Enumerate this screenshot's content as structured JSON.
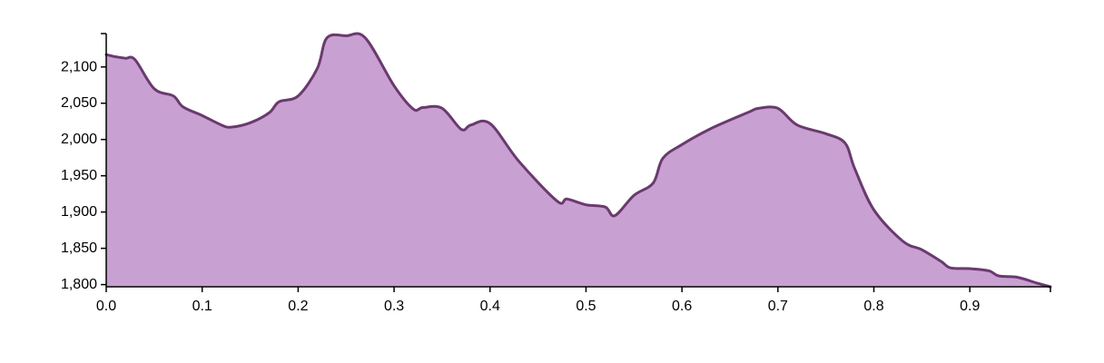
{
  "chart_data": {
    "type": "area",
    "title": "",
    "xlabel": "",
    "ylabel": "",
    "xlim": [
      0,
      0.984
    ],
    "ylim": [
      1797,
      2146
    ],
    "grid": false,
    "legend": "none",
    "colors": {
      "fill": "#c9a0d2",
      "line": "#6a3a6e",
      "axis": "#000000"
    },
    "x_ticks": [
      {
        "value": 0.0,
        "label": "0.0"
      },
      {
        "value": 0.1,
        "label": "0.1"
      },
      {
        "value": 0.2,
        "label": "0.2"
      },
      {
        "value": 0.3,
        "label": "0.3"
      },
      {
        "value": 0.4,
        "label": "0.4"
      },
      {
        "value": 0.5,
        "label": "0.5"
      },
      {
        "value": 0.6,
        "label": "0.6"
      },
      {
        "value": 0.7,
        "label": "0.7"
      },
      {
        "value": 0.8,
        "label": "0.8"
      },
      {
        "value": 0.9,
        "label": "0.9"
      }
    ],
    "y_ticks": [
      {
        "value": 1800,
        "label": "1,800"
      },
      {
        "value": 1850,
        "label": "1,850"
      },
      {
        "value": 1900,
        "label": "1,900"
      },
      {
        "value": 1950,
        "label": "1,950"
      },
      {
        "value": 2000,
        "label": "2,000"
      },
      {
        "value": 2050,
        "label": "2,050"
      },
      {
        "value": 2100,
        "label": "2,100"
      }
    ],
    "series": [
      {
        "x": [
          0.0,
          0.01,
          0.02,
          0.03,
          0.05,
          0.07,
          0.08,
          0.1,
          0.12,
          0.13,
          0.15,
          0.17,
          0.18,
          0.2,
          0.22,
          0.23,
          0.25,
          0.27,
          0.3,
          0.32,
          0.33,
          0.35,
          0.37,
          0.38,
          0.4,
          0.43,
          0.47,
          0.48,
          0.5,
          0.52,
          0.53,
          0.55,
          0.57,
          0.58,
          0.6,
          0.63,
          0.67,
          0.68,
          0.7,
          0.72,
          0.75,
          0.77,
          0.78,
          0.8,
          0.83,
          0.85,
          0.87,
          0.88,
          0.9,
          0.92,
          0.93,
          0.95,
          0.97,
          0.984
        ],
        "values": [
          2117,
          2114,
          2112,
          2110,
          2070,
          2060,
          2045,
          2033,
          2020,
          2017,
          2023,
          2037,
          2052,
          2060,
          2098,
          2140,
          2143,
          2140,
          2074,
          2042,
          2044,
          2043,
          2014,
          2020,
          2022,
          1970,
          1915,
          1918,
          1910,
          1907,
          1895,
          1923,
          1940,
          1974,
          1993,
          2015,
          2038,
          2043,
          2043,
          2020,
          2008,
          1995,
          1960,
          1903,
          1860,
          1848,
          1832,
          1823,
          1822,
          1819,
          1812,
          1810,
          1802,
          1797
        ]
      }
    ]
  }
}
